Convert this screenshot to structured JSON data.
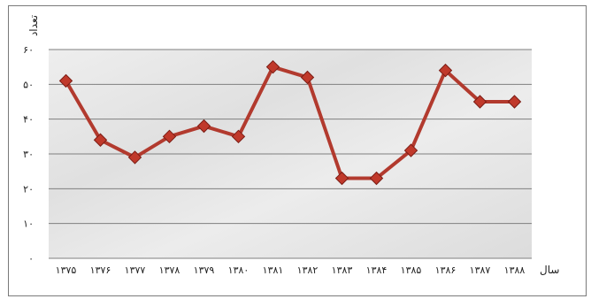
{
  "chart_data": {
    "type": "line",
    "title": "",
    "ylabel": "تعداد",
    "xlabel": "سال",
    "ylim": [
      0,
      60
    ],
    "yticks": [
      "۰",
      "۱۰",
      "۲۰",
      "۳۰",
      "۴۰",
      "۵۰",
      "۶۰"
    ],
    "categories": [
      "۱۳۷۵",
      "۱۳۷۶",
      "۱۳۷۷",
      "۱۳۷۸",
      "۱۳۷۹",
      "۱۳۸۰",
      "۱۳۸۱",
      "۱۳۸۲",
      "۱۳۸۳",
      "۱۳۸۴",
      "۱۳۸۵",
      "۱۳۸۶",
      "۱۳۸۷",
      "۱۳۸۸"
    ],
    "series": [
      {
        "values": [
          51,
          34,
          29,
          35,
          38,
          35,
          55,
          52,
          23,
          23,
          31,
          54,
          45,
          45
        ]
      }
    ],
    "grid": true,
    "colors": {
      "line": "#b23a2e",
      "marker_fill": "#c0392b",
      "marker_edge": "#7b1d15",
      "grid": "#7f7f7f"
    }
  }
}
